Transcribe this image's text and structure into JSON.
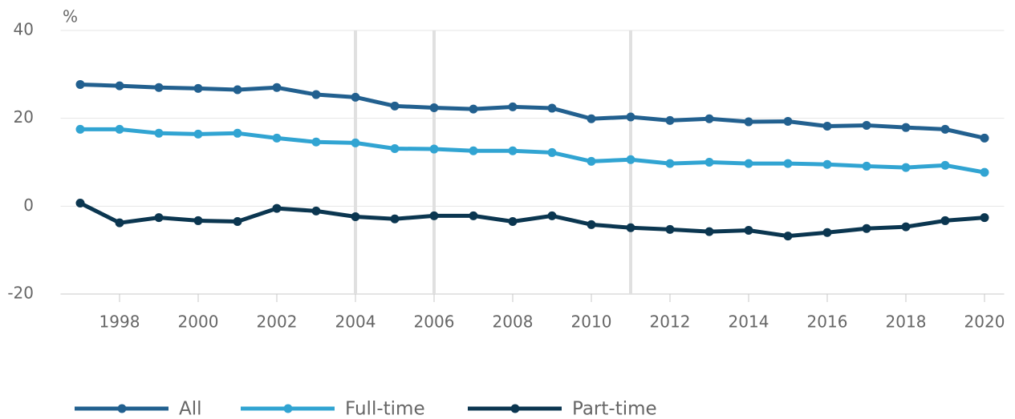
{
  "chart_data": {
    "type": "line",
    "y_label": "%",
    "x": [
      1997,
      1998,
      1999,
      2000,
      2001,
      2002,
      2003,
      2004,
      2005,
      2006,
      2007,
      2008,
      2009,
      2010,
      2011,
      2012,
      2013,
      2014,
      2015,
      2016,
      2017,
      2018,
      2019,
      2020
    ],
    "series": [
      {
        "name": "All",
        "color": "#22608f",
        "values": [
          27.7,
          27.4,
          27.0,
          26.8,
          26.5,
          27.0,
          25.4,
          24.8,
          22.8,
          22.4,
          22.1,
          22.6,
          22.3,
          19.9,
          20.3,
          19.5,
          19.9,
          19.2,
          19.3,
          18.2,
          18.4,
          17.9,
          17.5,
          15.5
        ]
      },
      {
        "name": "Full-time",
        "color": "#31a4d2",
        "values": [
          17.5,
          17.5,
          16.6,
          16.4,
          16.6,
          15.5,
          14.6,
          14.4,
          13.1,
          13.0,
          12.6,
          12.6,
          12.2,
          10.2,
          10.6,
          9.7,
          10.0,
          9.7,
          9.7,
          9.5,
          9.1,
          8.8,
          9.3,
          7.7
        ]
      },
      {
        "name": "Part-time",
        "color": "#0b3650",
        "values": [
          0.7,
          -3.8,
          -2.6,
          -3.3,
          -3.5,
          -0.5,
          -1.1,
          -2.4,
          -2.9,
          -2.2,
          -2.2,
          -3.5,
          -2.2,
          -4.2,
          -4.9,
          -5.3,
          -5.8,
          -5.5,
          -6.8,
          -6.0,
          -5.1,
          -4.7,
          -3.3,
          -2.6
        ]
      }
    ],
    "highlight_x": [
      2004,
      2006,
      2011
    ],
    "xlim": [
      1996.5,
      2020.5
    ],
    "xticks": [
      1998,
      2000,
      2002,
      2004,
      2006,
      2008,
      2010,
      2012,
      2014,
      2016,
      2018,
      2020
    ],
    "ylim": [
      -20,
      40
    ],
    "yticks": [
      -20,
      0,
      20,
      40
    ],
    "grid": true
  }
}
